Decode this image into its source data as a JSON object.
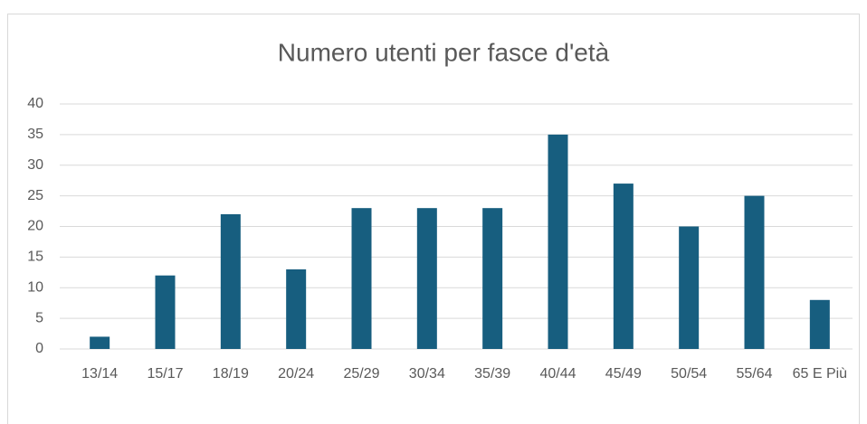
{
  "chart_data": {
    "type": "bar",
    "title": "Numero utenti per fasce d'età",
    "categories": [
      "13/14",
      "15/17",
      "18/19",
      "20/24",
      "25/29",
      "30/34",
      "35/39",
      "40/44",
      "45/49",
      "50/54",
      "55/64",
      "65 E Più"
    ],
    "values": [
      2,
      12,
      22,
      13,
      23,
      23,
      23,
      35,
      27,
      20,
      25,
      8
    ],
    "color": "#175e7f",
    "ylim": [
      0,
      40
    ],
    "yticks": [
      0,
      5,
      10,
      15,
      20,
      25,
      30,
      35,
      40
    ],
    "grid": true
  }
}
